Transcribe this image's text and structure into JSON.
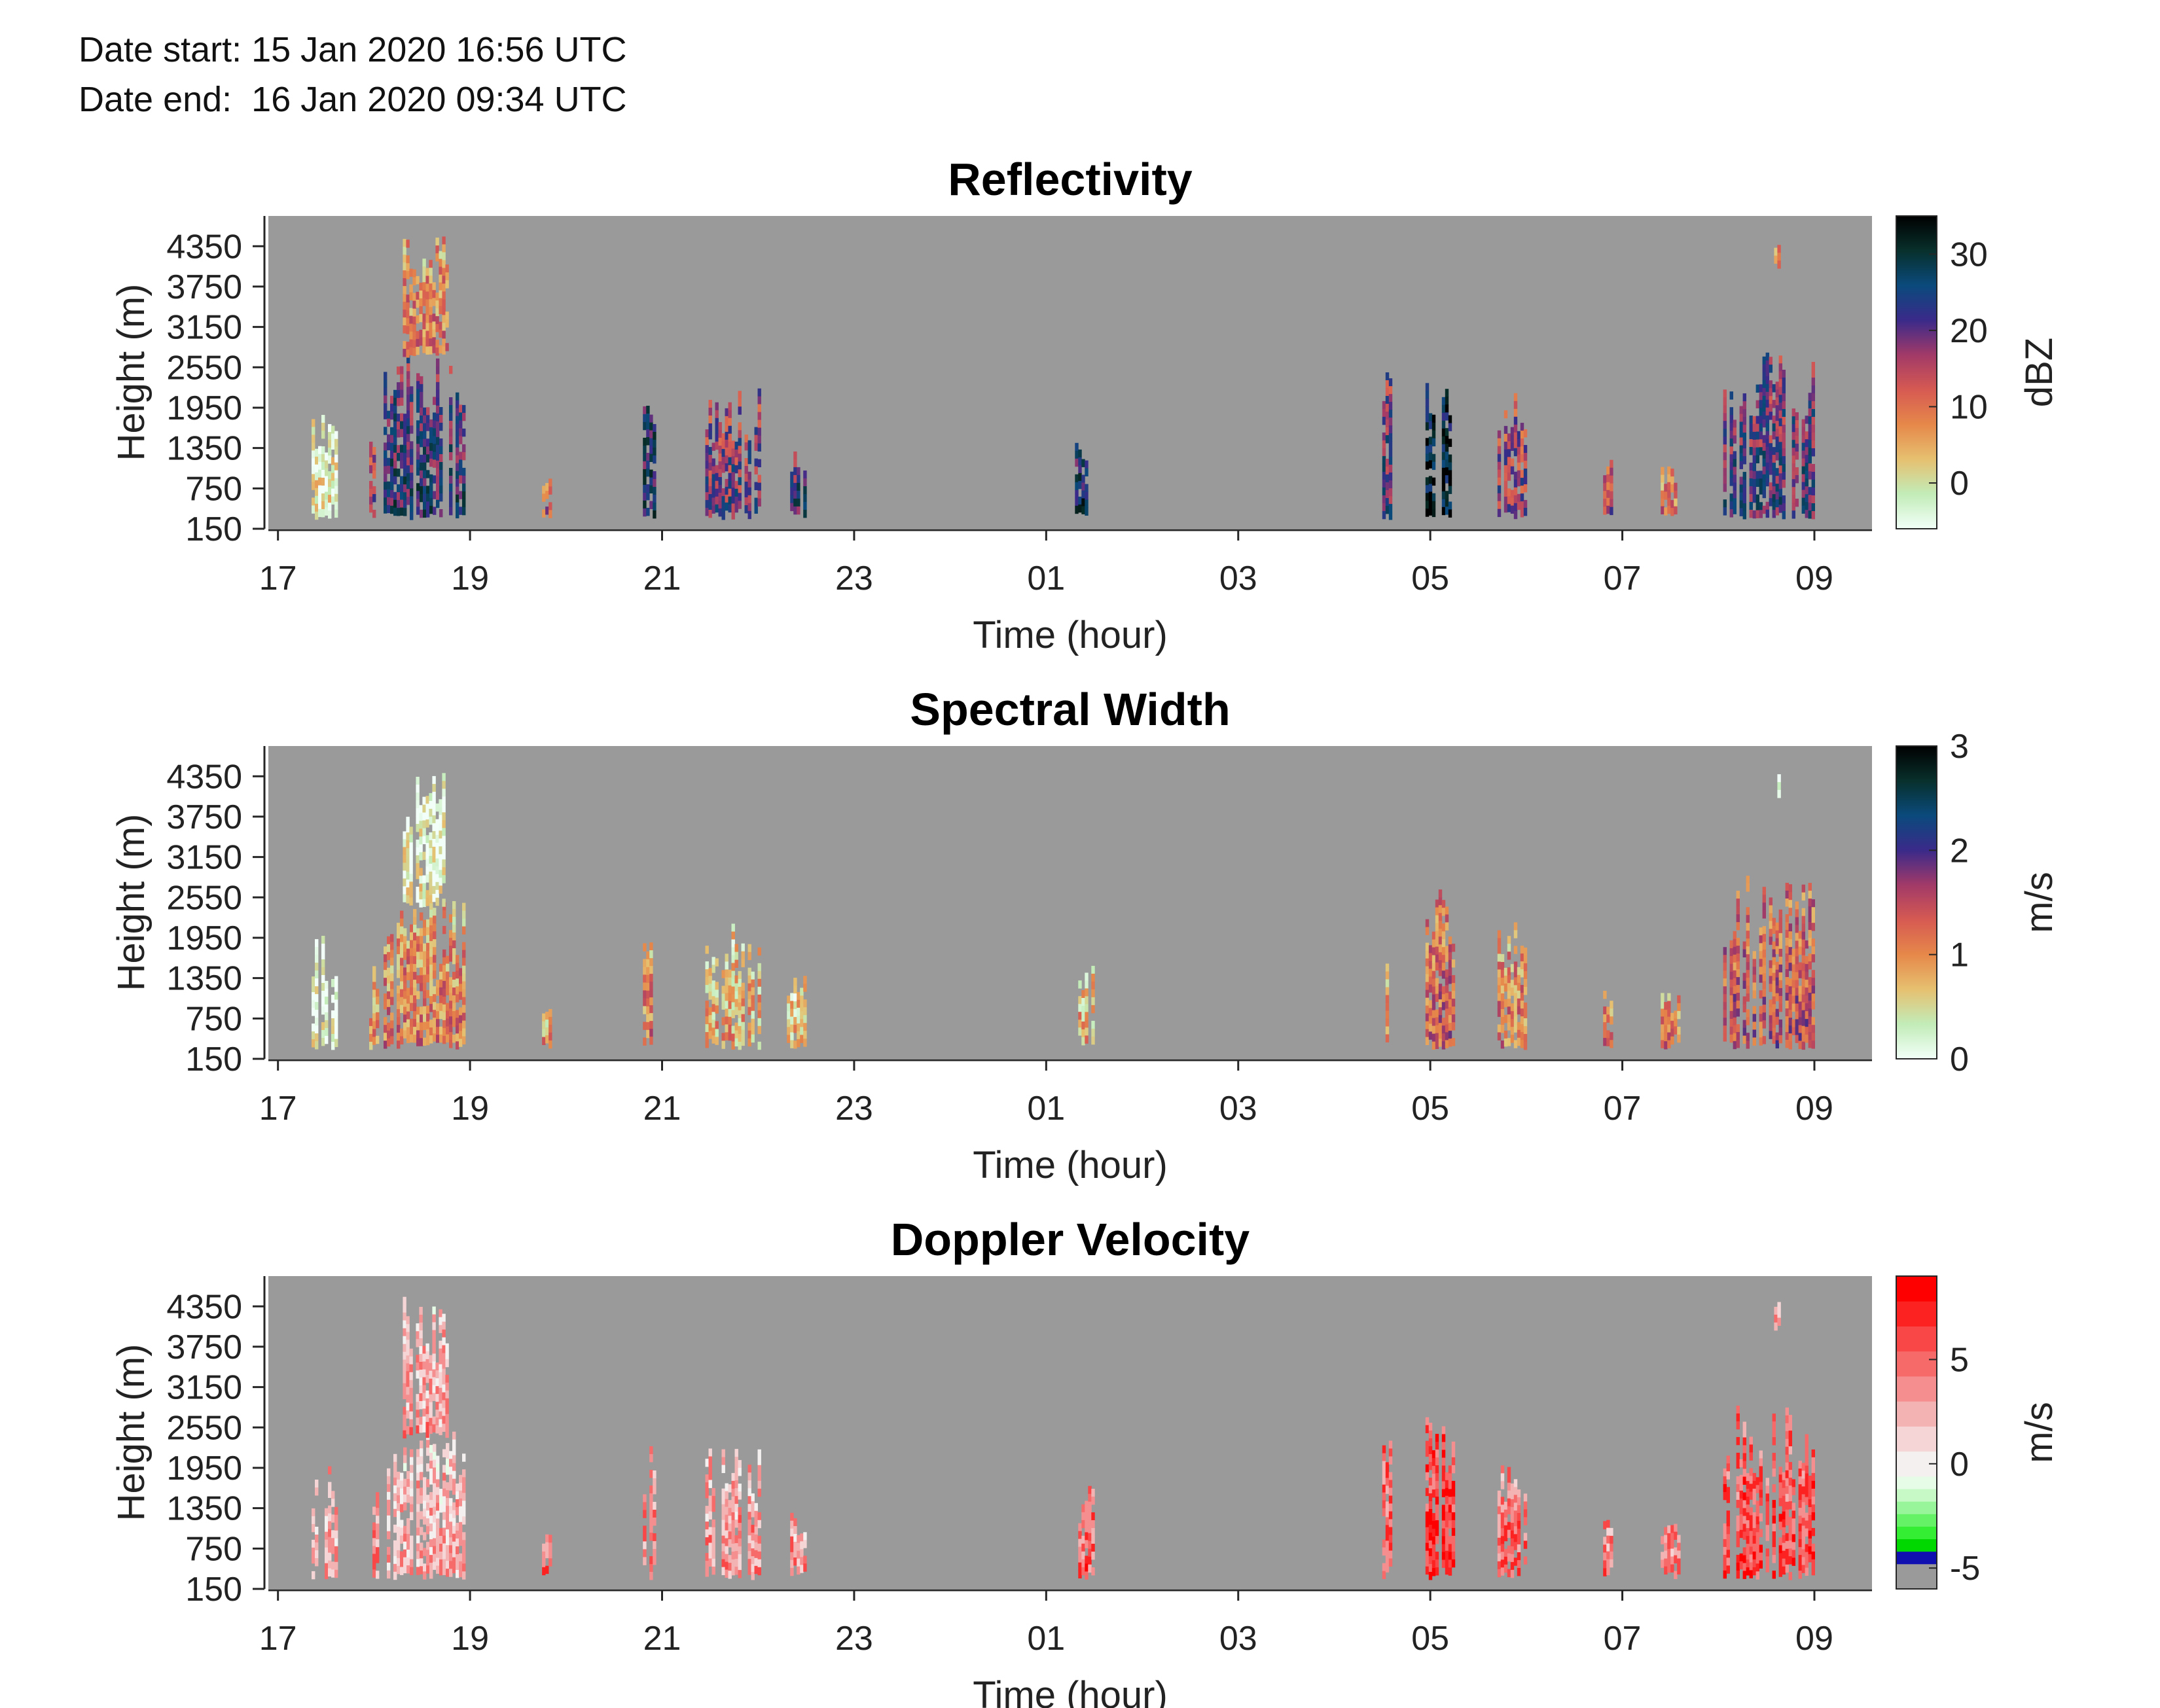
{
  "header": {
    "date_start": "Date start: 15 Jan 2020 16:56 UTC",
    "date_end": "Date end:  16 Jan 2020 09:34 UTC"
  },
  "chart_data": [
    {
      "type": "heatmap",
      "title": "Reflectivity",
      "xlabel": "Time (hour)",
      "ylabel": "Height (m)",
      "x_ticks": [
        "17",
        "19",
        "21",
        "23",
        "01",
        "03",
        "05",
        "07",
        "09"
      ],
      "x_tick_values": [
        17,
        19,
        21,
        23,
        25,
        27,
        29,
        31,
        33
      ],
      "xlim": [
        16.9,
        33.6
      ],
      "y_ticks": [
        150,
        750,
        1350,
        1950,
        2550,
        3150,
        3750,
        4350
      ],
      "ylim": [
        150,
        4800
      ],
      "colorbar": {
        "label": "dBZ",
        "ticks": [
          0,
          10,
          20,
          30
        ],
        "range": [
          -6,
          35
        ],
        "stops": [
          "#f2fff8",
          "#c2ecb8",
          "#e6c070",
          "#e6884a",
          "#d65a52",
          "#a23a68",
          "#3a2a8a",
          "#0a4a7c",
          "#08302c",
          "#000000"
        ]
      },
      "background": "#9a9a9a",
      "events": [
        {
          "t0": 17.35,
          "t1": 17.6,
          "h0": 400,
          "h1": 2000,
          "v": -2
        },
        {
          "t0": 17.95,
          "t1": 18.05,
          "h0": 400,
          "h1": 1600,
          "v": 14
        },
        {
          "t0": 18.1,
          "t1": 18.95,
          "h0": 400,
          "h1": 2800,
          "v": 22
        },
        {
          "t0": 18.3,
          "t1": 18.75,
          "h0": 2800,
          "h1": 4500,
          "v": 8
        },
        {
          "t0": 19.75,
          "t1": 19.82,
          "h0": 400,
          "h1": 1050,
          "v": 12
        },
        {
          "t0": 20.8,
          "t1": 20.92,
          "h0": 400,
          "h1": 2300,
          "v": 24
        },
        {
          "t0": 21.45,
          "t1": 22.0,
          "h0": 400,
          "h1": 2250,
          "v": 18
        },
        {
          "t0": 22.3,
          "t1": 22.5,
          "h0": 400,
          "h1": 1400,
          "v": 22
        },
        {
          "t0": 25.3,
          "t1": 25.5,
          "h0": 400,
          "h1": 1700,
          "v": 25
        },
        {
          "t0": 28.5,
          "t1": 28.6,
          "h0": 400,
          "h1": 2500,
          "v": 20
        },
        {
          "t0": 28.95,
          "t1": 29.25,
          "h0": 400,
          "h1": 2750,
          "v": 30
        },
        {
          "t0": 29.7,
          "t1": 30.0,
          "h0": 400,
          "h1": 2200,
          "v": 16
        },
        {
          "t0": 30.8,
          "t1": 30.9,
          "h0": 400,
          "h1": 1200,
          "v": 14
        },
        {
          "t0": 31.4,
          "t1": 31.6,
          "h0": 400,
          "h1": 1150,
          "v": 8
        },
        {
          "t0": 32.05,
          "t1": 33.0,
          "h0": 400,
          "h1": 2900,
          "v": 20
        },
        {
          "t0": 32.58,
          "t1": 32.63,
          "h0": 4100,
          "h1": 4500,
          "v": 6
        }
      ]
    },
    {
      "type": "heatmap",
      "title": "Spectral Width",
      "xlabel": "Time (hour)",
      "ylabel": "Height (m)",
      "x_ticks": [
        "17",
        "19",
        "21",
        "23",
        "01",
        "03",
        "05",
        "07",
        "09"
      ],
      "x_tick_values": [
        17,
        19,
        21,
        23,
        25,
        27,
        29,
        31,
        33
      ],
      "xlim": [
        16.9,
        33.6
      ],
      "y_ticks": [
        150,
        750,
        1350,
        1950,
        2550,
        3150,
        3750,
        4350
      ],
      "ylim": [
        150,
        4800
      ],
      "colorbar": {
        "label": "m/s",
        "ticks": [
          0,
          1,
          2,
          3
        ],
        "range": [
          0,
          3
        ],
        "stops": [
          "#f2fff8",
          "#c2ecb8",
          "#e6c070",
          "#e6884a",
          "#d65a52",
          "#a23a68",
          "#3a2a8a",
          "#0a4a7c",
          "#08302c",
          "#000000"
        ]
      },
      "background": "#9a9a9a",
      "events": [
        {
          "t0": 17.35,
          "t1": 17.6,
          "h0": 400,
          "h1": 2000,
          "v": 0.1
        },
        {
          "t0": 17.95,
          "t1": 18.05,
          "h0": 400,
          "h1": 1600,
          "v": 0.8
        },
        {
          "t0": 18.1,
          "t1": 18.95,
          "h0": 400,
          "h1": 2500,
          "v": 1.0
        },
        {
          "t0": 18.3,
          "t1": 18.75,
          "h0": 2500,
          "h1": 4500,
          "v": 0.2
        },
        {
          "t0": 19.75,
          "t1": 19.82,
          "h0": 400,
          "h1": 1050,
          "v": 0.8
        },
        {
          "t0": 20.8,
          "t1": 20.92,
          "h0": 400,
          "h1": 2300,
          "v": 1.0
        },
        {
          "t0": 21.45,
          "t1": 22.0,
          "h0": 400,
          "h1": 2250,
          "v": 0.7
        },
        {
          "t0": 22.3,
          "t1": 22.5,
          "h0": 400,
          "h1": 1400,
          "v": 0.6
        },
        {
          "t0": 25.3,
          "t1": 25.5,
          "h0": 400,
          "h1": 1700,
          "v": 0.7
        },
        {
          "t0": 28.5,
          "t1": 28.6,
          "h0": 400,
          "h1": 2500,
          "v": 0.9
        },
        {
          "t0": 28.95,
          "t1": 29.25,
          "h0": 400,
          "h1": 2750,
          "v": 1.2
        },
        {
          "t0": 29.7,
          "t1": 30.0,
          "h0": 400,
          "h1": 2200,
          "v": 1.0
        },
        {
          "t0": 30.8,
          "t1": 30.9,
          "h0": 400,
          "h1": 1200,
          "v": 1.1
        },
        {
          "t0": 31.4,
          "t1": 31.6,
          "h0": 400,
          "h1": 1150,
          "v": 1.0
        },
        {
          "t0": 32.05,
          "t1": 33.0,
          "h0": 400,
          "h1": 2900,
          "v": 1.3
        },
        {
          "t0": 32.58,
          "t1": 32.63,
          "h0": 4100,
          "h1": 4500,
          "v": 0.1
        }
      ]
    },
    {
      "type": "heatmap",
      "title": "Doppler Velocity",
      "xlabel": "Time (hour)",
      "ylabel": "Height (m)",
      "x_ticks": [
        "17",
        "19",
        "21",
        "23",
        "01",
        "03",
        "05",
        "07",
        "09"
      ],
      "x_tick_values": [
        17,
        19,
        21,
        23,
        25,
        27,
        29,
        31,
        33
      ],
      "xlim": [
        16.9,
        33.6
      ],
      "y_ticks": [
        150,
        750,
        1350,
        1950,
        2550,
        3150,
        3750,
        4350
      ],
      "ylim": [
        150,
        4800
      ],
      "colorbar": {
        "label": "m/s",
        "ticks": [
          -5,
          0,
          5
        ],
        "range": [
          -6,
          9
        ],
        "bands": [
          {
            "v0": -6,
            "v1": -4.8,
            "color": "#9a9a9a"
          },
          {
            "v0": -4.8,
            "v1": -4.2,
            "color": "#1010b0"
          },
          {
            "v0": -4.2,
            "v1": -3.6,
            "color": "#00d800"
          },
          {
            "v0": -3.6,
            "v1": -3.0,
            "color": "#33ee33"
          },
          {
            "v0": -3.0,
            "v1": -2.4,
            "color": "#66f266"
          },
          {
            "v0": -2.4,
            "v1": -1.8,
            "color": "#99f599"
          },
          {
            "v0": -1.8,
            "v1": -1.2,
            "color": "#c6f9c6"
          },
          {
            "v0": -1.2,
            "v1": -0.6,
            "color": "#e6fce6"
          },
          {
            "v0": -0.6,
            "v1": 0.6,
            "color": "#f4f0f0"
          },
          {
            "v0": 0.6,
            "v1": 1.8,
            "color": "#f5d5d5"
          },
          {
            "v0": 1.8,
            "v1": 3.0,
            "color": "#f4b3b3"
          },
          {
            "v0": 3.0,
            "v1": 4.2,
            "color": "#f58f8f"
          },
          {
            "v0": 4.2,
            "v1": 5.4,
            "color": "#f76a6a"
          },
          {
            "v0": 5.4,
            "v1": 6.6,
            "color": "#f94646"
          },
          {
            "v0": 6.6,
            "v1": 7.8,
            "color": "#fc2222"
          },
          {
            "v0": 7.8,
            "v1": 9,
            "color": "#ff0000"
          }
        ]
      },
      "background": "#9a9a9a",
      "events": [
        {
          "t0": 17.35,
          "t1": 17.6,
          "h0": 400,
          "h1": 2000,
          "v": 2.5
        },
        {
          "t0": 17.95,
          "t1": 18.05,
          "h0": 400,
          "h1": 1600,
          "v": 3.5
        },
        {
          "t0": 18.1,
          "t1": 18.95,
          "h0": 400,
          "h1": 2500,
          "v": 2.0
        },
        {
          "t0": 18.3,
          "t1": 18.75,
          "h0": 2500,
          "h1": 4500,
          "v": 2.2
        },
        {
          "t0": 19.75,
          "t1": 19.82,
          "h0": 400,
          "h1": 1050,
          "v": 4.5
        },
        {
          "t0": 20.8,
          "t1": 20.92,
          "h0": 400,
          "h1": 2300,
          "v": 4.0
        },
        {
          "t0": 21.45,
          "t1": 22.0,
          "h0": 400,
          "h1": 2250,
          "v": 2.8
        },
        {
          "t0": 22.3,
          "t1": 22.5,
          "h0": 400,
          "h1": 1400,
          "v": 3.2
        },
        {
          "t0": 25.3,
          "t1": 25.5,
          "h0": 400,
          "h1": 1700,
          "v": 4.5
        },
        {
          "t0": 28.5,
          "t1": 28.6,
          "h0": 400,
          "h1": 2500,
          "v": 5.0
        },
        {
          "t0": 28.95,
          "t1": 29.25,
          "h0": 400,
          "h1": 2750,
          "v": 6.5
        },
        {
          "t0": 29.7,
          "t1": 30.0,
          "h0": 400,
          "h1": 2200,
          "v": 4.5
        },
        {
          "t0": 30.8,
          "t1": 30.9,
          "h0": 400,
          "h1": 1200,
          "v": 4.0
        },
        {
          "t0": 31.4,
          "t1": 31.6,
          "h0": 400,
          "h1": 1150,
          "v": 4.0
        },
        {
          "t0": 32.05,
          "t1": 33.0,
          "h0": 400,
          "h1": 2900,
          "v": 5.5
        },
        {
          "t0": 32.58,
          "t1": 32.63,
          "h0": 4100,
          "h1": 4500,
          "v": 3.0
        }
      ]
    }
  ]
}
